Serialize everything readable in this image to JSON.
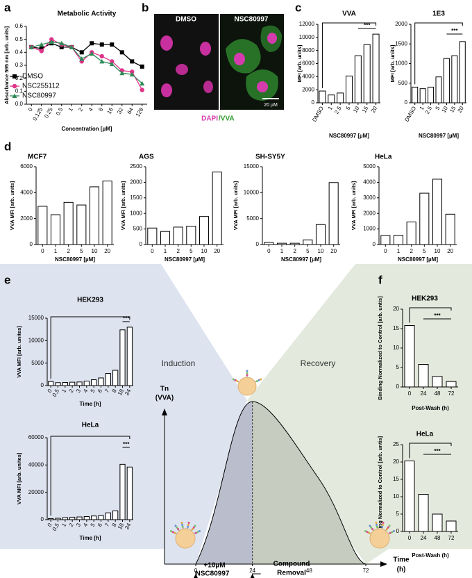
{
  "figure": {
    "panel_labels": [
      "a",
      "b",
      "c",
      "d",
      "e",
      "f"
    ],
    "microscopy": {
      "left": "DMSO",
      "right": "NSC80997",
      "stain_dapi": "DAPI",
      "stain_vva": "/VVA",
      "scale": "20 µM"
    }
  },
  "chart_data": [
    {
      "type": "line",
      "title": "Metabolic Activity",
      "xlabel": "Concentration [µM]",
      "ylabel": "Absorbance 595 nm [arb. units]",
      "categories": [
        "0",
        "0.125",
        "0.25",
        "0.5",
        "1",
        "2",
        "4",
        "8",
        "16",
        "32",
        "64",
        "128"
      ],
      "rotate_labels": true,
      "ylim": [
        0,
        0.6
      ],
      "yticks": [
        {
          "value": 0,
          "label": "0.0"
        },
        0.1,
        0.2,
        0.3,
        0.4,
        0.5,
        0.6
      ],
      "series": [
        {
          "name": "DMSO",
          "color": "#000000",
          "marker": "square",
          "values": [
            0.44,
            0.43,
            0.47,
            0.44,
            0.44,
            0.4,
            0.47,
            0.46,
            0.46,
            0.4,
            0.33,
            0.29
          ]
        },
        {
          "name": "NSC255112",
          "color": "#e0338a",
          "marker": "circle",
          "values": [
            0.44,
            0.41,
            0.5,
            0.46,
            0.44,
            0.33,
            0.4,
            0.37,
            0.33,
            0.26,
            0.25,
            0.11
          ]
        },
        {
          "name": "NSC80997",
          "color": "#2e8b57",
          "marker": "triangle",
          "values": [
            0.44,
            0.46,
            0.48,
            0.47,
            0.44,
            0.35,
            0.39,
            0.33,
            0.31,
            0.24,
            0.23,
            0.16
          ]
        }
      ]
    },
    {
      "type": "bar",
      "title": "VVA",
      "xlabel": "NSC80997 [µM]",
      "ylabel": "MFI [arb. units]",
      "rotate_labels": true,
      "categories": [
        "DMSO",
        "1",
        "2.5",
        "5",
        "10",
        "15",
        "20"
      ],
      "values": [
        1800,
        1200,
        1500,
        4100,
        7200,
        8900,
        10500
      ],
      "ylim": [
        0,
        12000
      ],
      "yticks": [
        0,
        2000,
        4000,
        6000,
        8000,
        10000,
        12000
      ],
      "color": "#ffffff",
      "edge_color": "#000000",
      "annotation": "***"
    },
    {
      "type": "bar",
      "title": "1E3",
      "xlabel": "NSC80997 [µM]",
      "ylabel": "MFI [arb. units]",
      "rotate_labels": true,
      "categories": [
        "DMSO",
        "1",
        "2.5",
        "5",
        "10",
        "15",
        "20"
      ],
      "values": [
        400,
        360,
        400,
        660,
        1130,
        1200,
        1560
      ],
      "ylim": [
        0,
        2000
      ],
      "yticks": [
        0,
        500,
        1000,
        1500,
        2000
      ],
      "color": "#ffffff",
      "edge_color": "#000000",
      "annotation": "***"
    },
    {
      "type": "bar",
      "title": "MCF7",
      "xlabel": "NSC80997 [µM]",
      "ylabel": "VVA MFI [arb. units]",
      "rotate_labels": false,
      "categories": [
        "0",
        "1",
        "2",
        "5",
        "10",
        "20"
      ],
      "values": [
        2950,
        2300,
        3250,
        3050,
        4450,
        4900
      ],
      "ylim": [
        0,
        6000
      ],
      "yticks": [
        0,
        2000,
        4000,
        6000
      ],
      "color": "#ffffff",
      "edge_color": "#000000"
    },
    {
      "type": "bar",
      "title": "AGS",
      "xlabel": "NSC80997 [µM]",
      "ylabel": "VVA MFI [arb. units]",
      "rotate_labels": false,
      "categories": [
        "0",
        "1",
        "2",
        "5",
        "10",
        "20"
      ],
      "values": [
        530,
        420,
        560,
        590,
        900,
        2330
      ],
      "ylim": [
        0,
        2500
      ],
      "yticks": [
        0,
        500,
        1000,
        1500,
        2000,
        2500
      ],
      "color": "#ffffff",
      "edge_color": "#000000"
    },
    {
      "type": "bar",
      "title": "SH-SY5Y",
      "xlabel": "NSC80997 [µM]",
      "ylabel": "VVA MFI [arb. units]",
      "rotate_labels": false,
      "categories": [
        "0",
        "1",
        "2",
        "5",
        "10",
        "20"
      ],
      "values": [
        400,
        250,
        250,
        900,
        3850,
        11950
      ],
      "ylim": [
        0,
        15000
      ],
      "yticks": [
        0,
        5000,
        10000,
        15000
      ],
      "color": "#ffffff",
      "edge_color": "#000000"
    },
    {
      "type": "bar",
      "title": "HeLa",
      "xlabel": "NSC80997 [µM]",
      "ylabel": "VVA MFI [arb. units]",
      "rotate_labels": false,
      "categories": [
        "0",
        "1",
        "2",
        "5",
        "10",
        "20"
      ],
      "values": [
        580,
        600,
        1450,
        3300,
        4200,
        1950
      ],
      "ylim": [
        0,
        5000
      ],
      "yticks": [
        0,
        1000,
        2000,
        3000,
        4000,
        5000
      ],
      "color": "#ffffff",
      "edge_color": "#000000"
    },
    {
      "type": "bar",
      "title": "HEK293",
      "xlabel": "Time [h]",
      "ylabel": "VVA MFI [arb. unites]",
      "rotate_labels": true,
      "categories": [
        "0",
        "0.5",
        "1",
        "2",
        "3",
        "4",
        "5",
        "6",
        "7",
        "8",
        "18",
        "24"
      ],
      "values": [
        900,
        650,
        700,
        750,
        800,
        1000,
        1300,
        1700,
        2700,
        3400,
        12400,
        13000
      ],
      "ylim": [
        0,
        15000
      ],
      "yticks": [
        0,
        5000,
        10000,
        15000
      ],
      "color": "#ffffff",
      "edge_color": "#000000",
      "annotation": "***"
    },
    {
      "type": "bar",
      "title": "HeLa",
      "xlabel": "Time [h]",
      "ylabel": "VVA MFI [arb. unites]",
      "rotate_labels": true,
      "categories": [
        "0",
        "0.5",
        "1",
        "2",
        "3",
        "4",
        "5",
        "6",
        "7",
        "8",
        "18",
        "24"
      ],
      "values": [
        800,
        1000,
        1500,
        1800,
        2000,
        2300,
        2700,
        3000,
        5000,
        6500,
        40500,
        38500
      ],
      "ylim": [
        0,
        60000
      ],
      "yticks": [
        0,
        20000,
        40000,
        60000
      ],
      "color": "#ffffff",
      "edge_color": "#000000",
      "annotation": "***"
    },
    {
      "type": "bar",
      "title": "HEK293",
      "xlabel": "Post-Wash (h)",
      "ylabel": "Binding Normalized to Control [arb. untis]",
      "rotate_labels": false,
      "categories": [
        "0",
        "24",
        "48",
        "72"
      ],
      "values": [
        15.8,
        5.8,
        2.7,
        1.4
      ],
      "ylim": [
        0,
        20
      ],
      "yticks": [
        0,
        5,
        10,
        15,
        20
      ],
      "color": "#ffffff",
      "edge_color": "#000000",
      "annotation": "***"
    },
    {
      "type": "bar",
      "title": "HeLa",
      "xlabel": "Post-Wash (h)",
      "ylabel": "Binding Normalized to Control [arb. untis]",
      "rotate_labels": false,
      "categories": [
        "0",
        "24",
        "48",
        "72"
      ],
      "values": [
        20.3,
        10.7,
        5.0,
        3.0
      ],
      "ylim": [
        0,
        25
      ],
      "yticks": [
        0,
        5,
        10,
        15,
        20,
        25
      ],
      "color": "#ffffff",
      "edge_color": "#000000",
      "annotation": "***"
    },
    {
      "type": "schematic",
      "ylabel": [
        "Tn",
        "(VVA)"
      ],
      "xlabel": [
        "Time",
        "(h)"
      ],
      "xlim": [
        0,
        72
      ],
      "xticks": [
        0,
        24,
        48,
        72
      ],
      "left_label": "Induction",
      "right_label": "Recovery",
      "start_label": [
        "+10µM",
        "NSC80997"
      ],
      "removal_label": [
        "Compound",
        "Removal"
      ]
    }
  ]
}
